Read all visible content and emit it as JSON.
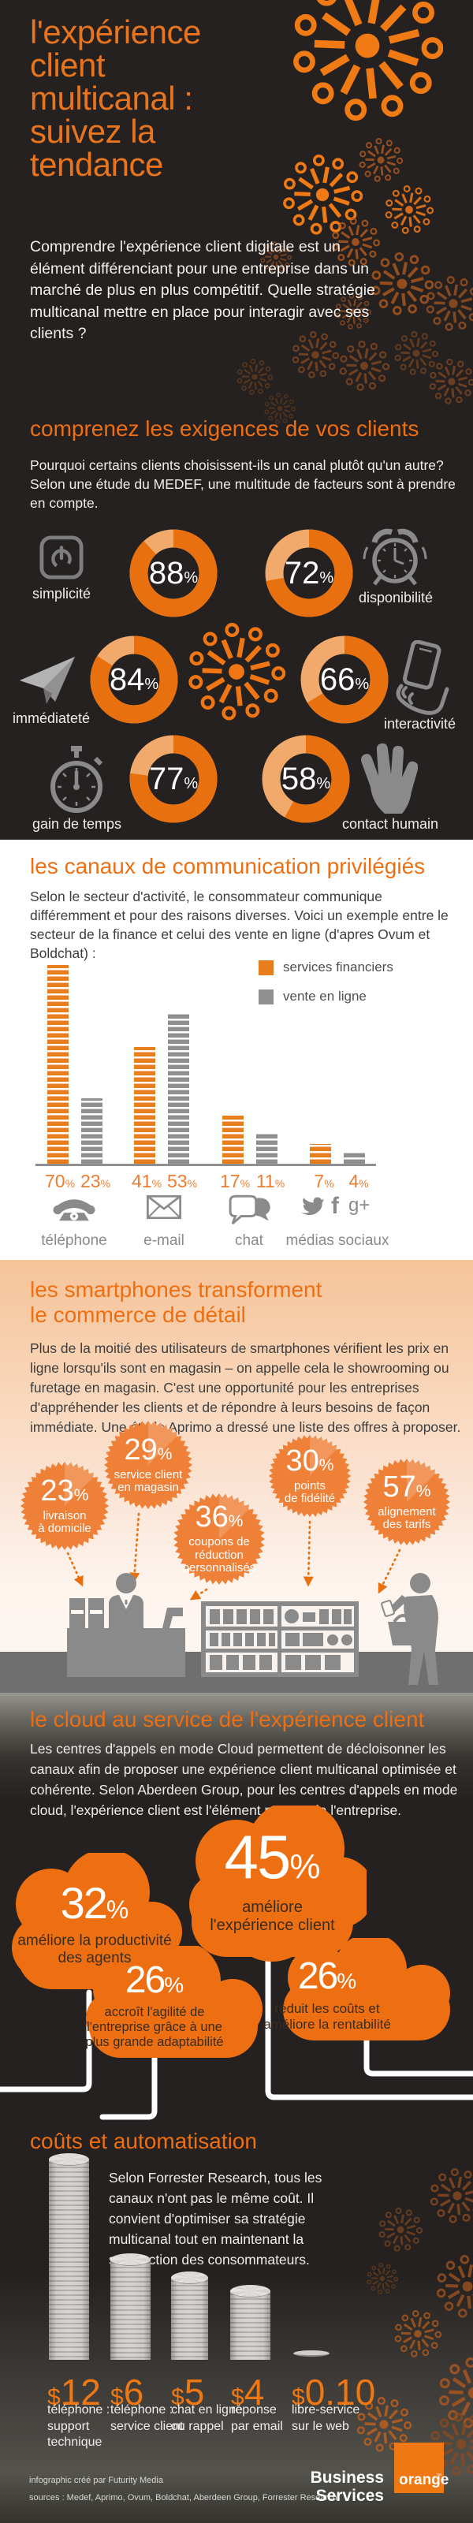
{
  "meta": {
    "percent_sign": "%",
    "dollar_sign": "$"
  },
  "header": {
    "title_lines": [
      "l'expérience",
      "client",
      "multicanal :",
      "suivez la",
      "tendance"
    ],
    "intro": "Comprendre l'expérience client digitale est un élément différenciant pour une entreprise dans un marché de plus en plus compétitif. Quelle stratégie multicanal mettre en place pour interagir avec ses clients ?"
  },
  "requirements": {
    "title": "comprenez les exigences de vos clients",
    "intro": "Pourquoi certains clients choisissent-ils un canal plutôt qu'un autre? Selon une étude du MEDEF, une multitude de facteurs sont à prendre en compte.",
    "chart_data": {
      "type": "pie",
      "style": "donut-set",
      "unit": "%",
      "categories": [
        "simplicité",
        "disponibilité",
        "immédiateté",
        "interactivité",
        "gain de temps",
        "contact humain"
      ],
      "values": [
        88,
        72,
        84,
        66,
        77,
        58
      ]
    },
    "items": [
      {
        "label": "simplicité",
        "value": 88,
        "icon": "power-icon"
      },
      {
        "label": "disponibilité",
        "value": 72,
        "icon": "alarm-clock-icon"
      },
      {
        "label": "immédiateté",
        "value": 84,
        "icon": "paper-plane-icon"
      },
      {
        "label": "interactivité",
        "value": 66,
        "icon": "hand-smartphone-icon"
      },
      {
        "label": "gain de temps",
        "value": 77,
        "icon": "stopwatch-icon"
      },
      {
        "label": "contact humain",
        "value": 58,
        "icon": "hand-icon"
      }
    ]
  },
  "channels": {
    "title": "les canaux de communication privilégiés",
    "intro": "Selon le secteur d'activité, le consommateur communique différemment et pour des raisons diverses. Voici un exemple entre le secteur de la finance et celui des vente en ligne (d'apres Ovum et Boldchat) :",
    "chart_data": {
      "type": "bar",
      "categories": [
        "téléphone",
        "e-mail",
        "chat",
        "médias sociaux"
      ],
      "series": [
        {
          "name": "services financiers",
          "color": "#e87d1e",
          "values": [
            70,
            41,
            17,
            7
          ]
        },
        {
          "name": "vente en ligne",
          "color": "#909090",
          "values": [
            23,
            53,
            11,
            4
          ]
        }
      ],
      "unit": "%",
      "ylim": [
        0,
        75
      ],
      "grid": false,
      "legend_position": "top-right",
      "value_labels": [
        "70",
        "23",
        "41",
        "53",
        "17",
        "11",
        "7",
        "4"
      ]
    }
  },
  "smartphones": {
    "title_lines": [
      "les smartphones transforment",
      "le commerce de détail"
    ],
    "intro": "Plus de la moitié des utilisateurs de smartphones vérifient les prix en ligne lorsqu'ils sont en magasin – on appelle cela le showrooming ou furetage en magasin. C'est une opportunité pour les entreprises d'appréhender les clients et de répondre à leurs besoins de façon immédiate. Une étude Aprimo a dressé une liste des offres à proposer.",
    "chart_data": {
      "type": "pie",
      "style": "starburst-badges",
      "unit": "%",
      "categories": [
        "livraison à domicile",
        "service client en magasin",
        "coupons de réduction personnalisés",
        "points de fidélité",
        "alignement des tarifs"
      ],
      "values": [
        23,
        29,
        36,
        30,
        57
      ]
    },
    "badges": [
      {
        "value": 23,
        "label_lines": [
          "livraison",
          "à domicile"
        ]
      },
      {
        "value": 29,
        "label_lines": [
          "service client",
          "en magasin"
        ]
      },
      {
        "value": 36,
        "label_lines": [
          "coupons de",
          "réduction",
          "personnalisés"
        ]
      },
      {
        "value": 30,
        "label_lines": [
          "points",
          "de fidélité"
        ]
      },
      {
        "value": 57,
        "label_lines": [
          "alignement",
          "des tarifs"
        ]
      }
    ]
  },
  "cloud": {
    "title": "le cloud au service de l'expérience client",
    "intro": "Les centres d'appels en mode Cloud permettent de décloisonner les canaux afin de proposer une expérience client multicanal optimisée et cohérente. Selon Aberdeen Group, pour les centres d'appels en mode cloud, l'expérience client est l'élément moteur de l'entreprise.",
    "chart_data": {
      "type": "pie",
      "style": "clouds",
      "unit": "%",
      "categories": [
        "améliore l'expérience client",
        "améliore la productivité des agents",
        "accroît l'agilité de l'entreprise grâce à une plus grande adaptabilité",
        "réduit les coûts et améliore la rentabilité"
      ],
      "values": [
        45,
        32,
        26,
        26
      ]
    },
    "clouds": [
      {
        "value": 45,
        "label_lines": [
          "améliore",
          "l'expérience client"
        ]
      },
      {
        "value": 32,
        "label_lines": [
          "améliore la productivité",
          "des agents"
        ]
      },
      {
        "value": 26,
        "label_lines": [
          "accroît l'agilité de",
          "l'entreprise grâce à une",
          "plus grande adaptabilité"
        ]
      },
      {
        "value": 26,
        "label_lines": [
          "réduit les coûts et",
          "améliore la rentabilité"
        ]
      }
    ]
  },
  "costs": {
    "title": "coûts et automatisation",
    "intro": "Selon Forrester Research, tous les canaux n'ont pas le même coût. Il convient d'optimiser sa stratégie multicanal tout en maintenant la satisfaction des consommateurs.",
    "chart_data": {
      "type": "bar",
      "style": "coin-stacks",
      "unit": "$",
      "categories": [
        "téléphone : support technique",
        "téléphone : service client",
        "chat en ligne ou rappel",
        "réponse par email",
        "libre-service sur le web"
      ],
      "values": [
        12,
        6,
        5,
        4,
        0.1
      ],
      "value_labels": [
        "$12",
        "$6",
        "$5",
        "$4",
        "$0.10"
      ]
    },
    "stacks": [
      {
        "display": "12",
        "label_lines": [
          "téléphone :",
          "support",
          "technique"
        ]
      },
      {
        "display": "6",
        "label_lines": [
          "téléphone :",
          "service client"
        ]
      },
      {
        "display": "5",
        "label_lines": [
          "chat en ligne",
          "ou rappel"
        ]
      },
      {
        "display": "4",
        "label_lines": [
          "réponse",
          "par email"
        ]
      },
      {
        "display": "0.10",
        "label_lines": [
          "libre-service",
          "sur le web"
        ]
      }
    ]
  },
  "footer": {
    "credit": "infographic créé par Futurity Media",
    "sources": "sources : Medef, Aprimo, Ovum, Boldchat, Aberdeen Group, Forrester Research",
    "brand_lines": [
      "Business",
      "Services"
    ],
    "logo_text": "orange",
    "logo_tm": "™"
  },
  "colors": {
    "accent_orange": "#ee6e12",
    "donut_dark": "#e8700f",
    "donut_light": "#f2a96c",
    "dark_bg": "#252120",
    "gray_icon": "#8a8a8a",
    "cloud_orange": "#ed6f12",
    "badge_orange": "#ee8038"
  }
}
